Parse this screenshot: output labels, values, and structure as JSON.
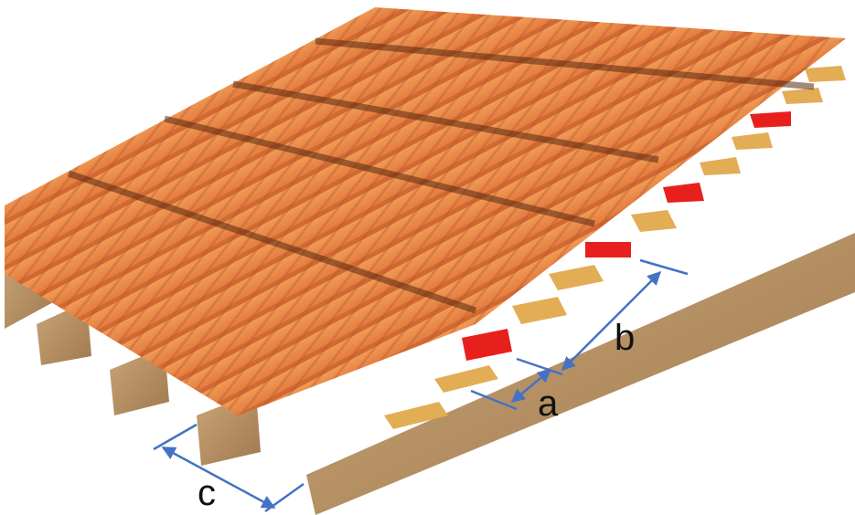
{
  "labels": {
    "a": "a",
    "b": "b",
    "c": "c"
  }
}
